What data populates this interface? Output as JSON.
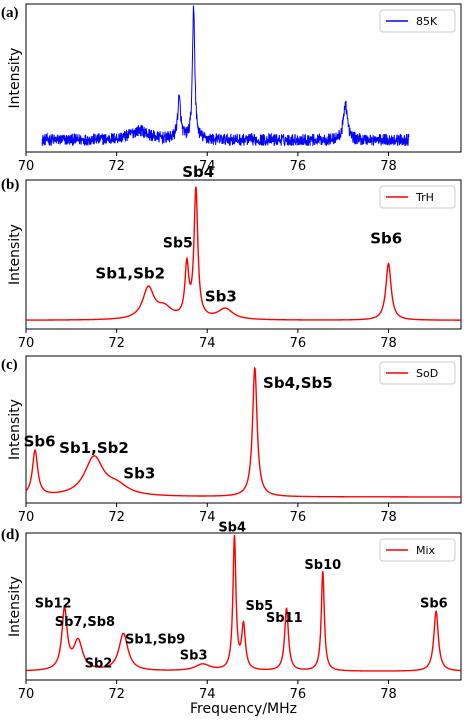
{
  "chart_data": [
    {
      "panel": "(a)",
      "type": "line",
      "ylabel": "Intensity",
      "xlim": [
        70,
        79.6
      ],
      "xticks": [
        70,
        72,
        74,
        76,
        78
      ],
      "legend": {
        "label": "85K",
        "placement": "top-right"
      },
      "color": "#0000ff",
      "range": [
        70.35,
        78.45
      ],
      "noise": 0.09,
      "baseline": 0.0,
      "peaks": [
        {
          "x": 72.5,
          "h": 0.07,
          "w": 0.25
        },
        {
          "x": 73.38,
          "h": 0.3,
          "w": 0.04
        },
        {
          "x": 73.7,
          "h": 1.0,
          "w": 0.03
        },
        {
          "x": 77.05,
          "h": 0.28,
          "w": 0.05
        }
      ],
      "annotations": []
    },
    {
      "panel": "(b)",
      "type": "line",
      "ylabel": "Intensity",
      "xlim": [
        70,
        79.6
      ],
      "xticks": [
        70,
        72,
        74,
        76,
        78
      ],
      "legend": {
        "label": "TrH",
        "placement": "top-right"
      },
      "color": "#ff0000",
      "range": [
        70,
        79.6
      ],
      "noise": 0,
      "baseline": 0.02,
      "peaks": [
        {
          "x": 72.7,
          "h": 0.23,
          "w": 0.15
        },
        {
          "x": 73.05,
          "h": 0.08,
          "w": 0.2
        },
        {
          "x": 73.55,
          "h": 0.38,
          "w": 0.05
        },
        {
          "x": 73.75,
          "h": 0.95,
          "w": 0.05
        },
        {
          "x": 74.4,
          "h": 0.08,
          "w": 0.2
        },
        {
          "x": 78.0,
          "h": 0.42,
          "w": 0.07
        }
      ],
      "annotations": [
        {
          "text": "Sb4",
          "x": 73.8,
          "y": 1.08,
          "size": 15
        },
        {
          "text": "Sb5",
          "x": 73.35,
          "y": 0.56,
          "size": 14
        },
        {
          "text": "Sb1,Sb2",
          "x": 72.3,
          "y": 0.33,
          "size": 15
        },
        {
          "text": "Sb3",
          "x": 74.3,
          "y": 0.16,
          "size": 15
        },
        {
          "text": "Sb6",
          "x": 77.95,
          "y": 0.59,
          "size": 15
        }
      ]
    },
    {
      "panel": "(c)",
      "type": "line",
      "ylabel": "Intensity",
      "xlim": [
        70,
        79.6
      ],
      "xticks": [
        70,
        72,
        74,
        76,
        78
      ],
      "legend": {
        "label": "SoD",
        "placement": "top-right"
      },
      "color": "#ff0000",
      "range": [
        70,
        79.6
      ],
      "noise": 0,
      "baseline": 0.0,
      "peaks": [
        {
          "x": 70.2,
          "h": 0.34,
          "w": 0.07
        },
        {
          "x": 71.5,
          "h": 0.29,
          "w": 0.25
        },
        {
          "x": 72.0,
          "h": 0.07,
          "w": 0.3
        },
        {
          "x": 75.05,
          "h": 0.97,
          "w": 0.06
        }
      ],
      "annotations": [
        {
          "text": "Sb4,Sb5",
          "x": 76.0,
          "y": 0.82,
          "size": 15
        },
        {
          "text": "Sb6",
          "x": 70.3,
          "y": 0.38,
          "size": 15
        },
        {
          "text": "Sb1,Sb2",
          "x": 71.5,
          "y": 0.33,
          "size": 15
        },
        {
          "text": "Sb3",
          "x": 72.5,
          "y": 0.14,
          "size": 15
        }
      ]
    },
    {
      "panel": "(d)",
      "type": "line",
      "ylabel": "Intensity",
      "xlabel": "Frequency/MHz",
      "xlim": [
        70,
        79.6
      ],
      "xticks": [
        70,
        72,
        74,
        76,
        78
      ],
      "legend": {
        "label": "Mix",
        "placement": "top-right"
      },
      "color": "#ff0000",
      "range": [
        70,
        79.6
      ],
      "noise": 0,
      "baseline": 0.02,
      "peaks": [
        {
          "x": 70.85,
          "h": 0.45,
          "w": 0.07
        },
        {
          "x": 71.15,
          "h": 0.22,
          "w": 0.12
        },
        {
          "x": 72.15,
          "h": 0.28,
          "w": 0.12
        },
        {
          "x": 73.9,
          "h": 0.05,
          "w": 0.2
        },
        {
          "x": 74.6,
          "h": 1.0,
          "w": 0.04
        },
        {
          "x": 74.8,
          "h": 0.33,
          "w": 0.05
        },
        {
          "x": 75.75,
          "h": 0.47,
          "w": 0.05
        },
        {
          "x": 76.55,
          "h": 0.75,
          "w": 0.04
        },
        {
          "x": 79.05,
          "h": 0.45,
          "w": 0.06
        }
      ],
      "annotations": [
        {
          "text": "Sb4",
          "x": 74.55,
          "y": 1.07,
          "size": 13
        },
        {
          "text": "Sb12",
          "x": 70.6,
          "y": 0.5,
          "size": 13
        },
        {
          "text": "Sb7,Sb8",
          "x": 71.3,
          "y": 0.36,
          "size": 13
        },
        {
          "text": "Sb2",
          "x": 71.6,
          "y": 0.05,
          "size": 13
        },
        {
          "text": "Sb1,Sb9",
          "x": 72.85,
          "y": 0.23,
          "size": 13
        },
        {
          "text": "Sb3",
          "x": 73.7,
          "y": 0.11,
          "size": 13
        },
        {
          "text": "Sb5",
          "x": 75.15,
          "y": 0.48,
          "size": 13
        },
        {
          "text": "Sb11",
          "x": 75.7,
          "y": 0.39,
          "size": 13
        },
        {
          "text": "Sb10",
          "x": 76.55,
          "y": 0.79,
          "size": 13
        },
        {
          "text": "Sb6",
          "x": 79.0,
          "y": 0.5,
          "size": 13
        }
      ]
    }
  ]
}
